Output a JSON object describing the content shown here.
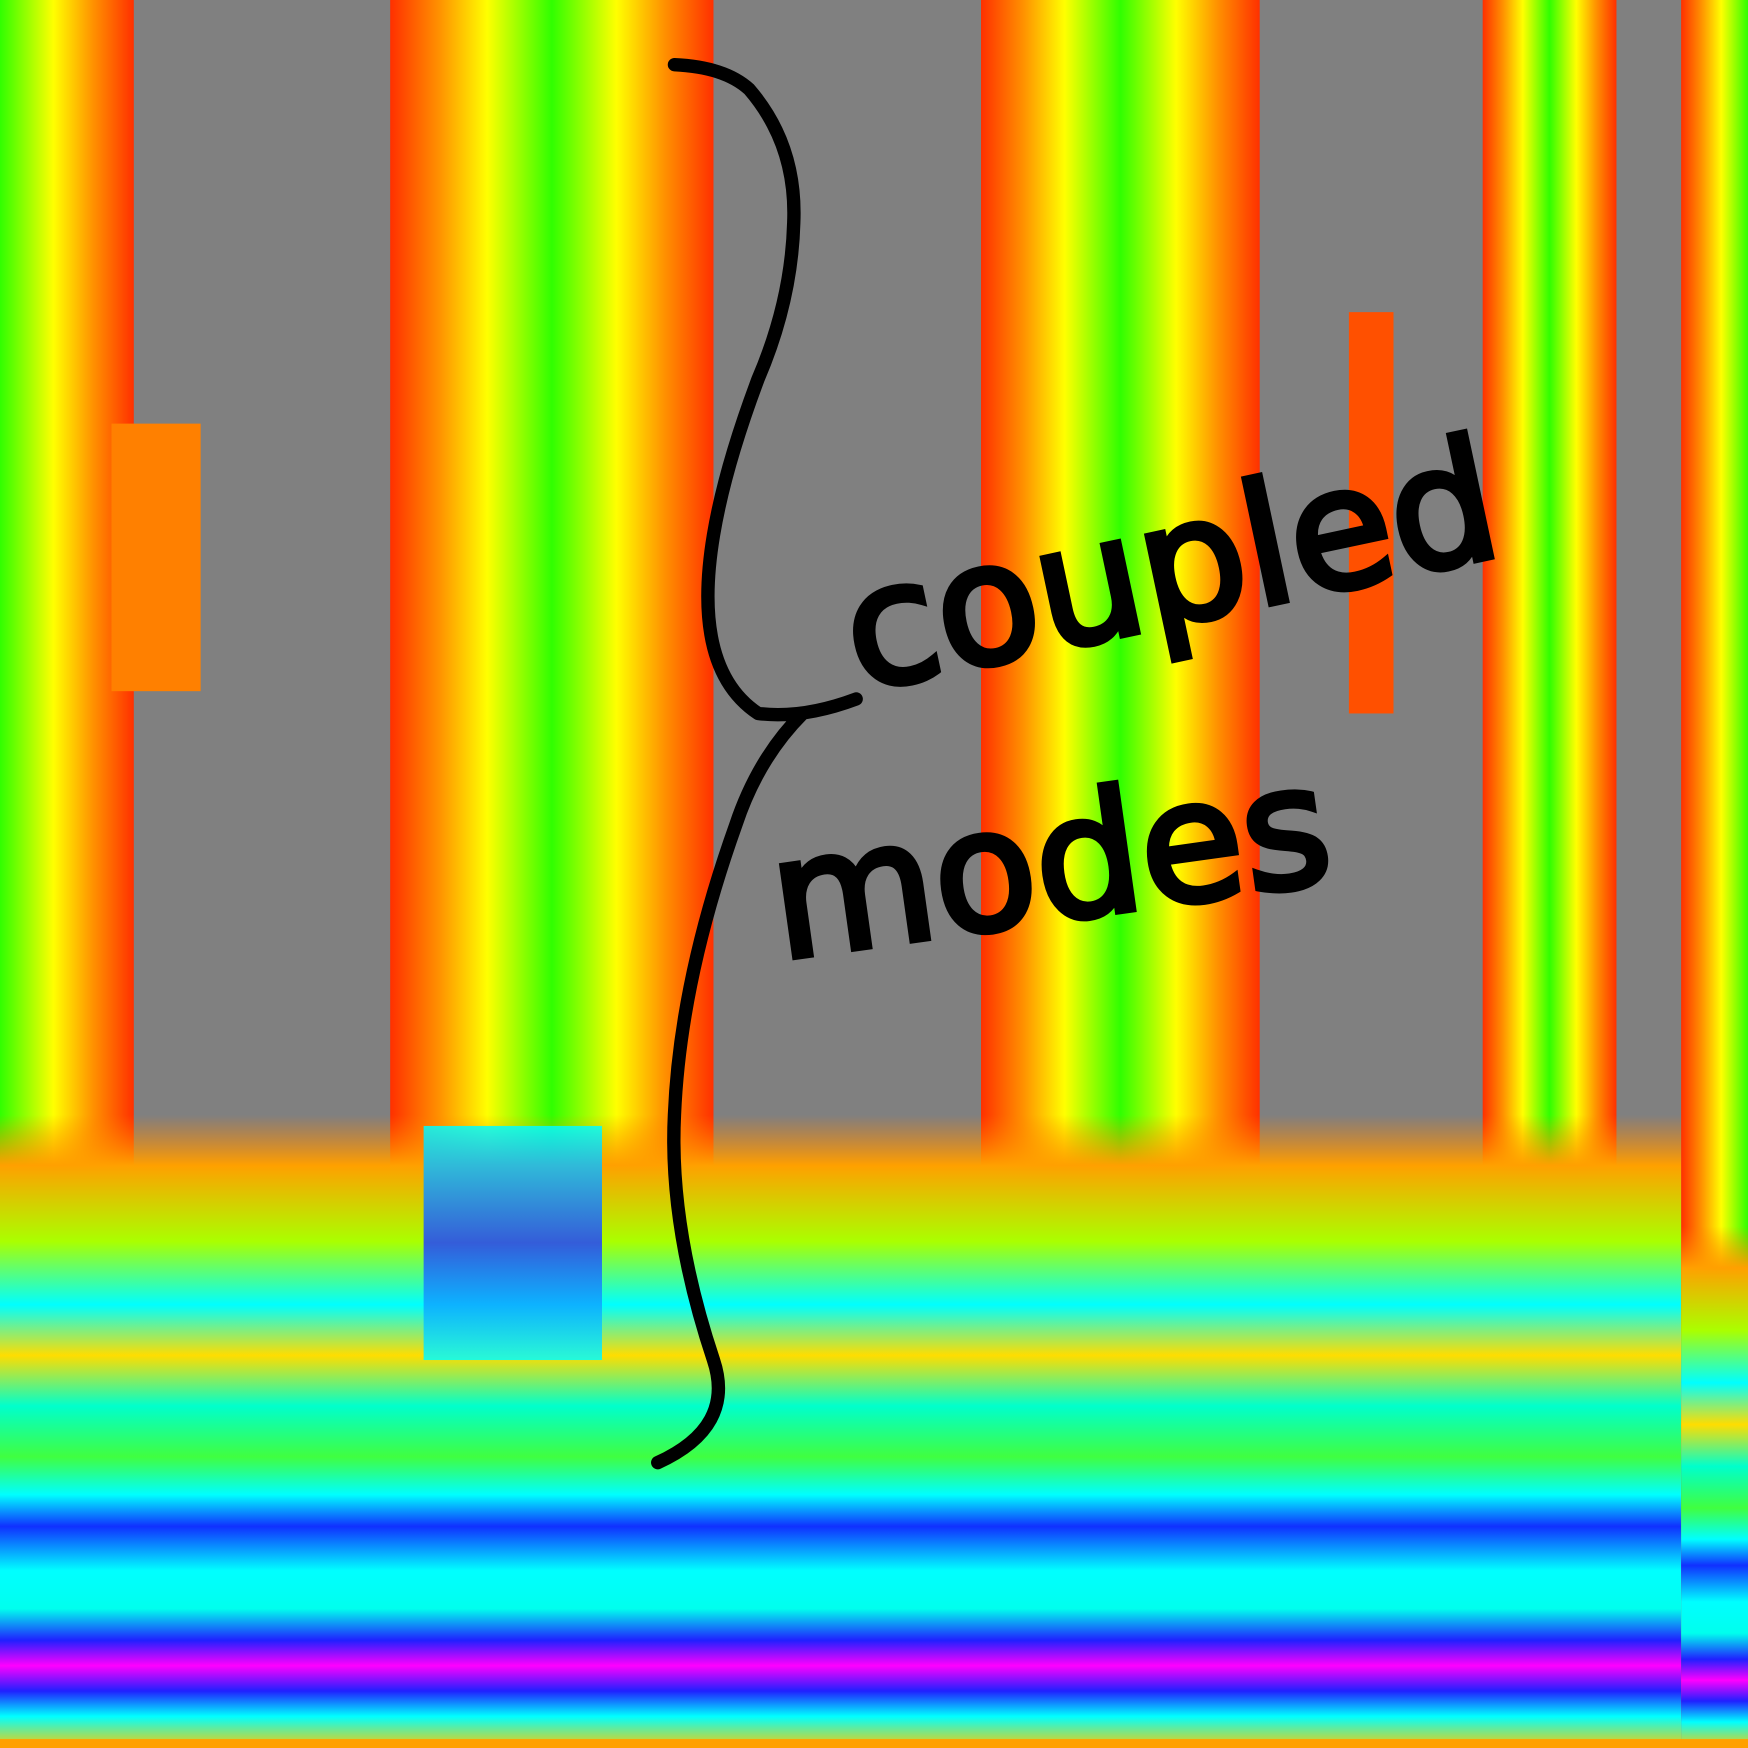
{
  "annotation": {
    "line1": "coupled",
    "line2": "modes"
  }
}
